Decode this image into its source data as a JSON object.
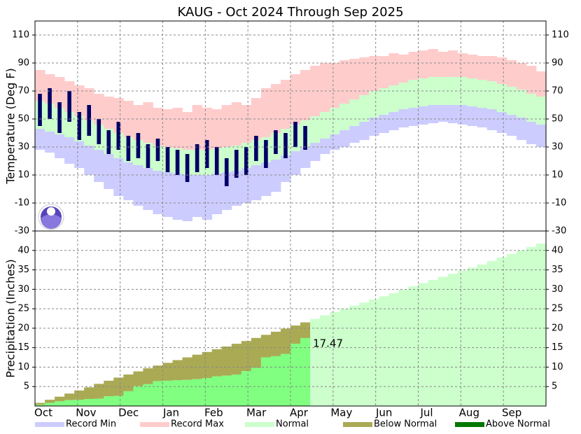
{
  "title": "KAUG - Oct 2024 Through Sep 2025",
  "categories": [
    "Oct",
    "Nov",
    "Dec",
    "Jan",
    "Feb",
    "Mar",
    "Apr",
    "May",
    "Jun",
    "Jul",
    "Aug",
    "Sep"
  ],
  "legend": [
    {
      "name": "Record Min",
      "color": "#ccccff"
    },
    {
      "name": "Record Max",
      "color": "#ffcccc"
    },
    {
      "name": "Normal",
      "color": "#ccffcc"
    },
    {
      "name": "Below Normal",
      "color": "#aaaa55"
    },
    {
      "name": "Above Normal",
      "color": "#007700"
    }
  ],
  "chart_data": [
    {
      "type": "temperature-bands",
      "y_label": "Temperature (Deg F)",
      "ylim": [
        -30,
        120
      ],
      "yticks": [
        -30,
        -10,
        10,
        30,
        50,
        70,
        90,
        110
      ],
      "grid": true,
      "observed_color": "#000066",
      "record_max": [
        85,
        82,
        80,
        77,
        74,
        72,
        68,
        66,
        65,
        63,
        60,
        62,
        58,
        57,
        58,
        55,
        60,
        58,
        57,
        60,
        62,
        60,
        65,
        72,
        75,
        78,
        82,
        85,
        88,
        90,
        90,
        92,
        93,
        94,
        95,
        95,
        97,
        96,
        98,
        99,
        100,
        98,
        99,
        97,
        96,
        95,
        95,
        94,
        92,
        90,
        88,
        84
      ],
      "normal_high": [
        63,
        61,
        58,
        55,
        52,
        49,
        46,
        43,
        40,
        37,
        35,
        33,
        31,
        30,
        29,
        28,
        28,
        28,
        29,
        30,
        31,
        33,
        35,
        37,
        40,
        43,
        46,
        49,
        52,
        55,
        58,
        61,
        64,
        67,
        70,
        72,
        74,
        76,
        78,
        79,
        80,
        80,
        80,
        80,
        79,
        78,
        77,
        75,
        73,
        71,
        68,
        66
      ],
      "normal_low": [
        43,
        41,
        39,
        37,
        34,
        31,
        28,
        25,
        22,
        19,
        17,
        15,
        13,
        12,
        11,
        10,
        10,
        10,
        11,
        12,
        13,
        15,
        17,
        19,
        21,
        24,
        27,
        30,
        33,
        36,
        39,
        42,
        45,
        48,
        51,
        53,
        55,
        57,
        58,
        59,
        60,
        60,
        60,
        60,
        59,
        58,
        57,
        55,
        53,
        51,
        48,
        46
      ],
      "record_min": [
        28,
        26,
        22,
        18,
        15,
        10,
        5,
        0,
        -5,
        -8,
        -12,
        -15,
        -18,
        -20,
        -22,
        -23,
        -20,
        -22,
        -18,
        -15,
        -12,
        -10,
        -8,
        -5,
        -2,
        5,
        10,
        15,
        20,
        25,
        28,
        30,
        33,
        35,
        38,
        40,
        42,
        44,
        45,
        46,
        47,
        48,
        47,
        46,
        45,
        44,
        42,
        40,
        38,
        35,
        32,
        30
      ],
      "observed_high": [
        68,
        72,
        62,
        70,
        55,
        60,
        50,
        42,
        48,
        38,
        40,
        32,
        36,
        30,
        28,
        25,
        32,
        35,
        30,
        22,
        28,
        30,
        38,
        35,
        42,
        40,
        48,
        45,
        null,
        null,
        null,
        null,
        null,
        null,
        null,
        null,
        null,
        null,
        null,
        null,
        null,
        null,
        null,
        null,
        null,
        null,
        null,
        null,
        null,
        null,
        null,
        null
      ],
      "observed_low": [
        45,
        50,
        40,
        48,
        35,
        38,
        32,
        25,
        28,
        20,
        22,
        15,
        20,
        12,
        10,
        5,
        12,
        15,
        10,
        2,
        8,
        10,
        20,
        15,
        25,
        22,
        30,
        28,
        null,
        null,
        null,
        null,
        null,
        null,
        null,
        null,
        null,
        null,
        null,
        null,
        null,
        null,
        null,
        null,
        null,
        null,
        null,
        null,
        null,
        null,
        null,
        null
      ]
    },
    {
      "type": "precipitation-cumulative",
      "y_label": "Precipitation (Inches)",
      "ylim": [
        0,
        45
      ],
      "yticks": [
        5,
        10,
        15,
        20,
        25,
        30,
        35,
        40
      ],
      "grid": true,
      "observed_color": "#80ff80",
      "normal": [
        0.8,
        1.6,
        2.4,
        3.2,
        4.0,
        4.8,
        5.7,
        6.5,
        7.3,
        8.1,
        8.9,
        9.7,
        10.4,
        11.1,
        11.8,
        12.5,
        13.2,
        13.9,
        14.6,
        15.3,
        16.0,
        16.7,
        17.5,
        18.3,
        19.1,
        19.9,
        20.7,
        21.5,
        22.4,
        23.3,
        24.2,
        25.0,
        25.8,
        26.6,
        27.4,
        28.2,
        29.0,
        29.9,
        30.8,
        31.6,
        32.4,
        33.2,
        34.0,
        34.8,
        35.6,
        36.4,
        37.3,
        38.2,
        39.1,
        40.0,
        40.9,
        41.8
      ],
      "observed": [
        0.3,
        0.8,
        1.2,
        1.5,
        1.6,
        1.8,
        1.9,
        2.5,
        2.6,
        3.8,
        5.1,
        5.6,
        6.4,
        6.5,
        6.6,
        6.7,
        6.9,
        7.2,
        7.6,
        7.8,
        8.1,
        9.0,
        9.8,
        12.5,
        12.8,
        13.4,
        16.0,
        17.47,
        null,
        null,
        null,
        null,
        null,
        null,
        null,
        null,
        null,
        null,
        null,
        null,
        null,
        null,
        null,
        null,
        null,
        null,
        null,
        null,
        null,
        null,
        null,
        null
      ]
    }
  ]
}
